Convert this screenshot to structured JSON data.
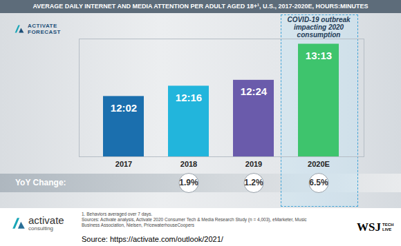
{
  "chart_data": {
    "type": "bar",
    "title": "AVERAGE DAILY INTERNET AND MEDIA ATTENTION PER ADULT AGED 18+¹, U.S., 2017-2020E, HOURS:MINUTES",
    "categories": [
      "2017",
      "2018",
      "2019",
      "2020E"
    ],
    "values": [
      722,
      736,
      744,
      793
    ],
    "value_labels": [
      "12:02",
      "12:16",
      "12:24",
      "13:13"
    ],
    "colors": [
      "#1b6fae",
      "#22b5dc",
      "#6a5bab",
      "#3ec46d"
    ],
    "data_labels": true,
    "ylim": [
      640,
      800
    ],
    "yticks": [],
    "tick_labels": "x",
    "grid": false,
    "annotations": [
      {
        "category": "2020E",
        "text": "COVID-19 outbreak impacting 2020 consumption"
      }
    ],
    "yoy_change": {
      "label": "YoY Change:",
      "values": [
        null,
        1.9,
        1.2,
        6.5
      ],
      "value_labels": [
        null,
        "1.9%",
        "1.2%",
        "6.5%"
      ]
    },
    "footnotes": [
      "1. Behaviors averaged over 7 days.",
      "Sources: Activate analysis, Activate 2020 Consumer Tech & Media Research Study (n = 4,003), eMarketer, Music Business Association, Nielsen, PricewaterhouseCoopers"
    ],
    "source": "Source: https://activate.com/outlook/2021/",
    "logos": {
      "top": [
        "ACTIVATE",
        "FORECAST"
      ],
      "bottom": [
        "activate",
        "consulting"
      ],
      "corner": [
        "WSJ",
        "TECH",
        "LIVE"
      ]
    }
  }
}
